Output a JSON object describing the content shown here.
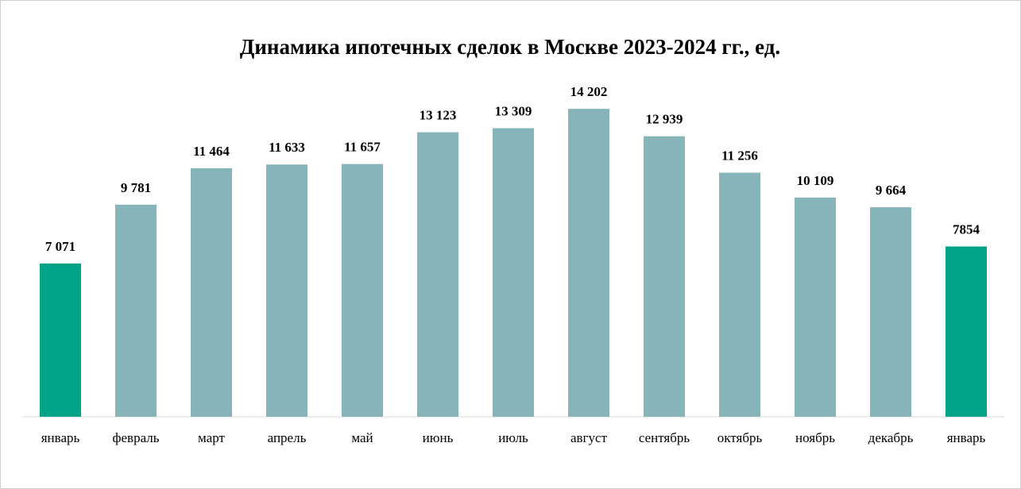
{
  "chart_data": {
    "type": "bar",
    "title": "Динамика ипотечных сделок в Москве 2023-2024 гг., ед.",
    "categories": [
      "январь",
      "февраль",
      "март",
      "апрель",
      "май",
      "июнь",
      "июль",
      "август",
      "сентябрь",
      "октябрь",
      "ноябрь",
      "декабрь",
      "январь"
    ],
    "values": [
      7071,
      9781,
      11464,
      11633,
      11657,
      13123,
      13309,
      14202,
      12939,
      11256,
      10109,
      9664,
      7854
    ],
    "value_labels": [
      "7 071",
      "9 781",
      "11 464",
      "11 633",
      "11 657",
      "13 123",
      "13 309",
      "14 202",
      "12 939",
      "11 256",
      "10 109",
      "9 664",
      "7854"
    ],
    "colors": [
      "#00a387",
      "#86b4b9",
      "#86b4b9",
      "#86b4b9",
      "#86b4b9",
      "#86b4b9",
      "#86b4b9",
      "#86b4b9",
      "#86b4b9",
      "#86b4b9",
      "#86b4b9",
      "#86b4b9",
      "#00a387"
    ],
    "ylim": [
      0,
      16000
    ]
  }
}
